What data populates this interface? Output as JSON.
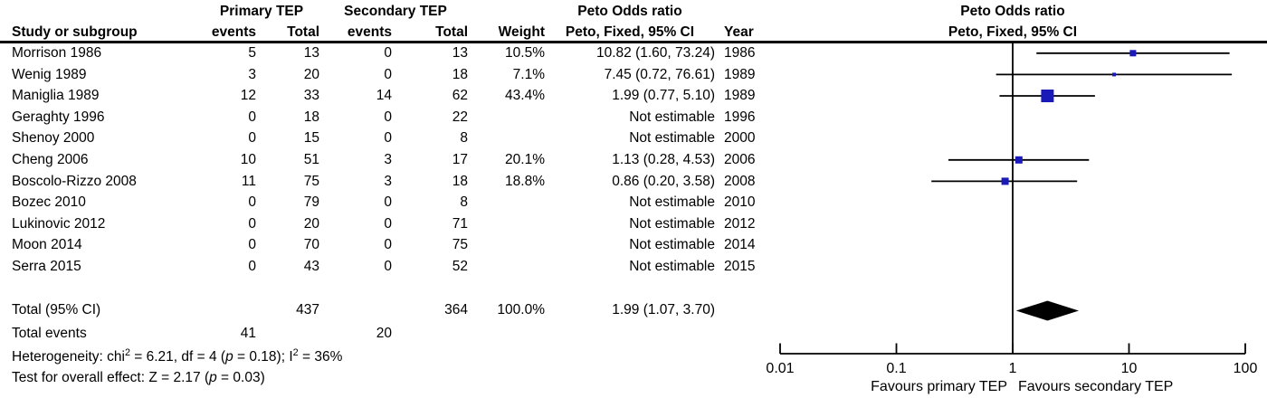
{
  "header": {
    "groups": {
      "primary": "Primary TEP",
      "secondary": "Secondary TEP",
      "peto_left": "Peto Odds ratio",
      "peto_right": "Peto Odds ratio"
    },
    "cols": {
      "study": "Study or subgroup",
      "events1": "events",
      "total1": "Total",
      "events2": "events",
      "total2": "Total",
      "weight": "Weight",
      "ci_left": "Peto, Fixed, 95% CI",
      "year": "Year",
      "ci_right": "Peto, Fixed, 95% CI"
    }
  },
  "studies": [
    {
      "name": "Morrison 1986",
      "events1": "5",
      "total1": "13",
      "events2": "0",
      "total2": "13",
      "weight": "10.5%",
      "ci": "10.82 (1.60, 73.24)",
      "year": "1986"
    },
    {
      "name": "Wenig 1989",
      "events1": "3",
      "total1": "20",
      "events2": "0",
      "total2": "18",
      "weight": "7.1%",
      "ci": "7.45 (0.72, 76.61)",
      "year": "1989"
    },
    {
      "name": "Maniglia 1989",
      "events1": "12",
      "total1": "33",
      "events2": "14",
      "total2": "62",
      "weight": "43.4%",
      "ci": "1.99 (0.77, 5.10)",
      "year": "1989"
    },
    {
      "name": "Geraghty 1996",
      "events1": "0",
      "total1": "18",
      "events2": "0",
      "total2": "22",
      "weight": "",
      "ci": "Not estimable",
      "year": "1996"
    },
    {
      "name": "Shenoy 2000",
      "events1": "0",
      "total1": "15",
      "events2": "0",
      "total2": "8",
      "weight": "",
      "ci": "Not estimable",
      "year": "2000"
    },
    {
      "name": "Cheng 2006",
      "events1": "10",
      "total1": "51",
      "events2": "3",
      "total2": "17",
      "weight": "20.1%",
      "ci": "1.13 (0.28, 4.53)",
      "year": "2006"
    },
    {
      "name": "Boscolo-Rizzo 2008",
      "events1": "11",
      "total1": "75",
      "events2": "3",
      "total2": "18",
      "weight": "18.8%",
      "ci": "0.86 (0.20, 3.58)",
      "year": "2008"
    },
    {
      "name": "Bozec 2010",
      "events1": "0",
      "total1": "79",
      "events2": "0",
      "total2": "8",
      "weight": "",
      "ci": "Not estimable",
      "year": "2010"
    },
    {
      "name": "Lukinovic 2012",
      "events1": "0",
      "total1": "20",
      "events2": "0",
      "total2": "71",
      "weight": "",
      "ci": "Not estimable",
      "year": "2012"
    },
    {
      "name": "Moon 2014",
      "events1": "0",
      "total1": "70",
      "events2": "0",
      "total2": "75",
      "weight": "",
      "ci": "Not estimable",
      "year": "2014"
    },
    {
      "name": "Serra 2015",
      "events1": "0",
      "total1": "43",
      "events2": "0",
      "total2": "52",
      "weight": "",
      "ci": "Not estimable",
      "year": "2015"
    }
  ],
  "totals": {
    "total_label": "Total (95% CI)",
    "total1": "437",
    "total2": "364",
    "weight": "100.0%",
    "ci": "1.99 (1.07, 3.70)",
    "events_label": "Total events",
    "events1": "41",
    "events2": "20"
  },
  "footnotes": {
    "het": [
      "Heterogeneity: chi",
      "2",
      " = 6.21, df = 4 (",
      "p",
      " = 0.18); I",
      "2",
      " = 36%"
    ],
    "test": [
      "Test for overall effect: Z = 2.17 (",
      "p",
      " = 0.03)"
    ]
  },
  "chart_data": {
    "type": "forest",
    "title": "Peto Odds ratio — Peto, Fixed, 95% CI",
    "x_scale": "log",
    "xlim": [
      0.01,
      100
    ],
    "x_ticks": [
      0.01,
      0.1,
      1,
      10,
      100
    ],
    "x_tick_labels": [
      "0.01",
      "0.1",
      "1",
      "10",
      "100"
    ],
    "null_line": 1,
    "favours_left": "Favours primary TEP",
    "favours_right": "Favours secondary TEP",
    "marker_color": "#1a1ab8",
    "line_color": "#000000",
    "points": [
      {
        "study": "Morrison 1986",
        "or": 10.82,
        "ci_low": 1.6,
        "ci_high": 73.24,
        "weight_pct": 10.5,
        "marker_px": 7
      },
      {
        "study": "Wenig 1989",
        "or": 7.45,
        "ci_low": 0.72,
        "ci_high": 76.61,
        "weight_pct": 7.1,
        "marker_px": 4
      },
      {
        "study": "Maniglia 1989",
        "or": 1.99,
        "ci_low": 0.77,
        "ci_high": 5.1,
        "weight_pct": 43.4,
        "marker_px": 14
      },
      {
        "study": "Cheng 2006",
        "or": 1.13,
        "ci_low": 0.28,
        "ci_high": 4.53,
        "weight_pct": 20.1,
        "marker_px": 8
      },
      {
        "study": "Boscolo-Rizzo 2008",
        "or": 0.86,
        "ci_low": 0.2,
        "ci_high": 3.58,
        "weight_pct": 18.8,
        "marker_px": 8
      }
    ],
    "not_estimable": [
      "Geraghty 1996",
      "Shenoy 2000",
      "Bozec 2010",
      "Lukinovic 2012",
      "Moon 2014",
      "Serra 2015"
    ],
    "total": {
      "or": 1.99,
      "ci_low": 1.07,
      "ci_high": 3.7,
      "weight_pct": 100.0
    }
  }
}
